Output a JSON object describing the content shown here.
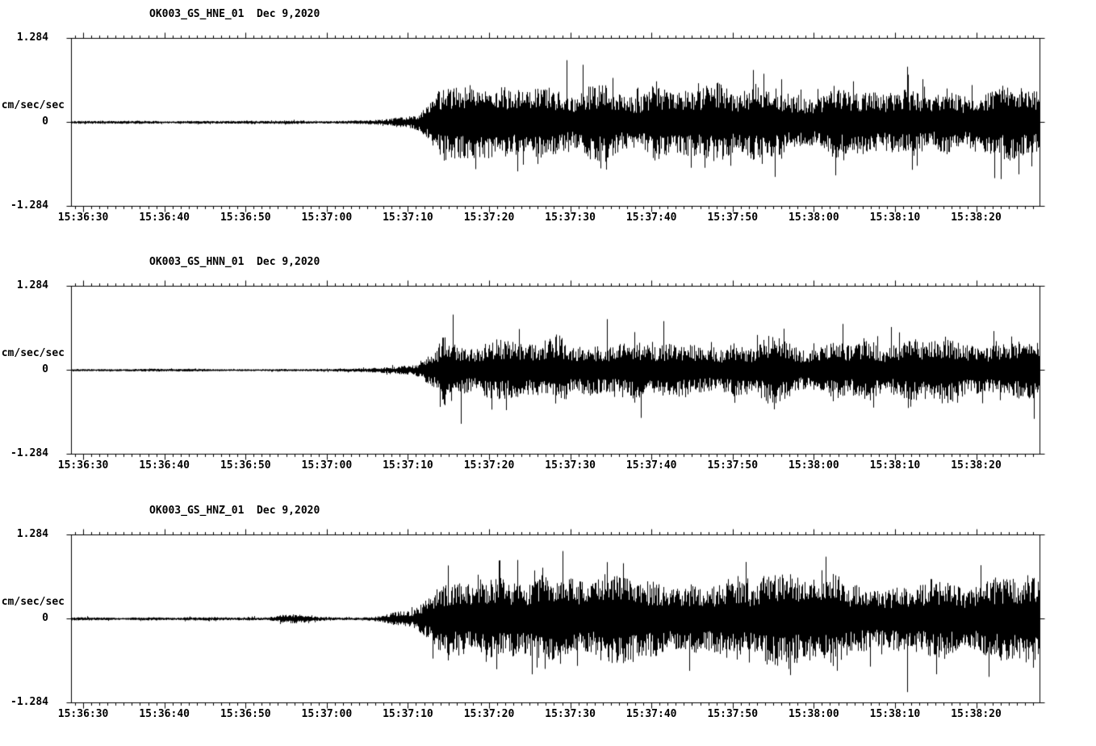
{
  "page": {
    "background": "#ffffff",
    "trace_color": "#000000",
    "axis_color": "#000000"
  },
  "chart_data": {
    "type": "line",
    "subtype": "seismogram-multipanel",
    "ylabel": "cm/sec/sec",
    "y_ticks": [
      "1.284",
      "0",
      "-1.284"
    ],
    "ylim": [
      -1.284,
      1.284
    ],
    "grid": false,
    "legend": false,
    "x_tick_labels": [
      "15:36:30",
      "15:36:40",
      "15:36:50",
      "15:37:00",
      "15:37:10",
      "15:37:20",
      "15:37:30",
      "15:37:40",
      "15:37:50",
      "15:38:00",
      "15:38:10",
      "15:38:20"
    ],
    "x_axis": {
      "duration_sec": 119.3,
      "first_tick_offset_sec": 1.5,
      "major_tick_sec": 10,
      "minor_tick_sec": 1
    },
    "panels": [
      {
        "id": "hne",
        "label": "OK003_GS_HNE_01",
        "date": "Dec 9,2020",
        "seed": 11,
        "spike_rate": 0.05,
        "spike_gain": 1.7,
        "envelope": [
          [
            0,
            0.022
          ],
          [
            20,
            0.022
          ],
          [
            32,
            0.024
          ],
          [
            36,
            0.032
          ],
          [
            39,
            0.05
          ],
          [
            41,
            0.09
          ],
          [
            43,
            0.16
          ],
          [
            44.5,
            0.3
          ],
          [
            45.5,
            0.52
          ],
          [
            47,
            0.6
          ],
          [
            49,
            0.52
          ],
          [
            52,
            0.46
          ],
          [
            56,
            0.52
          ],
          [
            60,
            0.56
          ],
          [
            64,
            0.5
          ],
          [
            68,
            0.46
          ],
          [
            72,
            0.52
          ],
          [
            76,
            0.5
          ],
          [
            80,
            0.54
          ],
          [
            85,
            0.48
          ],
          [
            90,
            0.5
          ],
          [
            95,
            0.46
          ],
          [
            100,
            0.5
          ],
          [
            105,
            0.46
          ],
          [
            110,
            0.52
          ],
          [
            115,
            0.48
          ],
          [
            119.3,
            0.5
          ]
        ],
        "spikes": [
          [
            55,
            -0.75
          ],
          [
            61,
            0.95
          ],
          [
            63,
            0.88
          ],
          [
            84,
            0.8
          ],
          [
            103,
            0.85
          ]
        ]
      },
      {
        "id": "hnn",
        "label": "OK003_GS_HNN_01",
        "date": "Dec 9,2020",
        "seed": 22,
        "spike_rate": 0.04,
        "spike_gain": 1.8,
        "envelope": [
          [
            0,
            0.02
          ],
          [
            30,
            0.02
          ],
          [
            36,
            0.026
          ],
          [
            40,
            0.045
          ],
          [
            43,
            0.12
          ],
          [
            45,
            0.28
          ],
          [
            46,
            0.62
          ],
          [
            47.5,
            0.55
          ],
          [
            50,
            0.44
          ],
          [
            54,
            0.46
          ],
          [
            58,
            0.5
          ],
          [
            62,
            0.44
          ],
          [
            66,
            0.46
          ],
          [
            70,
            0.5
          ],
          [
            75,
            0.46
          ],
          [
            80,
            0.44
          ],
          [
            85,
            0.46
          ],
          [
            90,
            0.42
          ],
          [
            95,
            0.44
          ],
          [
            100,
            0.42
          ],
          [
            105,
            0.44
          ],
          [
            110,
            0.42
          ],
          [
            115,
            0.44
          ],
          [
            119.3,
            0.42
          ]
        ],
        "spikes": [
          [
            47,
            0.85
          ],
          [
            48,
            -0.82
          ],
          [
            66,
            0.78
          ],
          [
            73,
            0.75
          ],
          [
            101,
            0.66
          ]
        ]
      },
      {
        "id": "hnz",
        "label": "OK003_GS_HNZ_01",
        "date": "Dec 9,2020",
        "seed": 33,
        "spike_rate": 0.05,
        "spike_gain": 1.8,
        "envelope": [
          [
            0,
            0.022
          ],
          [
            24,
            0.022
          ],
          [
            26,
            0.05
          ],
          [
            28,
            0.06
          ],
          [
            30,
            0.035
          ],
          [
            33,
            0.024
          ],
          [
            36,
            0.03
          ],
          [
            38,
            0.05
          ],
          [
            40,
            0.09
          ],
          [
            42,
            0.14
          ],
          [
            44,
            0.28
          ],
          [
            45.5,
            0.5
          ],
          [
            47,
            0.55
          ],
          [
            50,
            0.48
          ],
          [
            54,
            0.55
          ],
          [
            58,
            0.6
          ],
          [
            62,
            0.55
          ],
          [
            66,
            0.58
          ],
          [
            70,
            0.55
          ],
          [
            75,
            0.58
          ],
          [
            80,
            0.55
          ],
          [
            85,
            0.6
          ],
          [
            90,
            0.55
          ],
          [
            95,
            0.58
          ],
          [
            100,
            0.55
          ],
          [
            105,
            0.58
          ],
          [
            110,
            0.55
          ],
          [
            115,
            0.55
          ],
          [
            119.3,
            0.55
          ]
        ],
        "spikes": [
          [
            55,
            0.9
          ],
          [
            68,
            0.85
          ],
          [
            93,
            0.95
          ],
          [
            103,
            -1.12
          ],
          [
            112,
            0.82
          ]
        ]
      }
    ]
  }
}
